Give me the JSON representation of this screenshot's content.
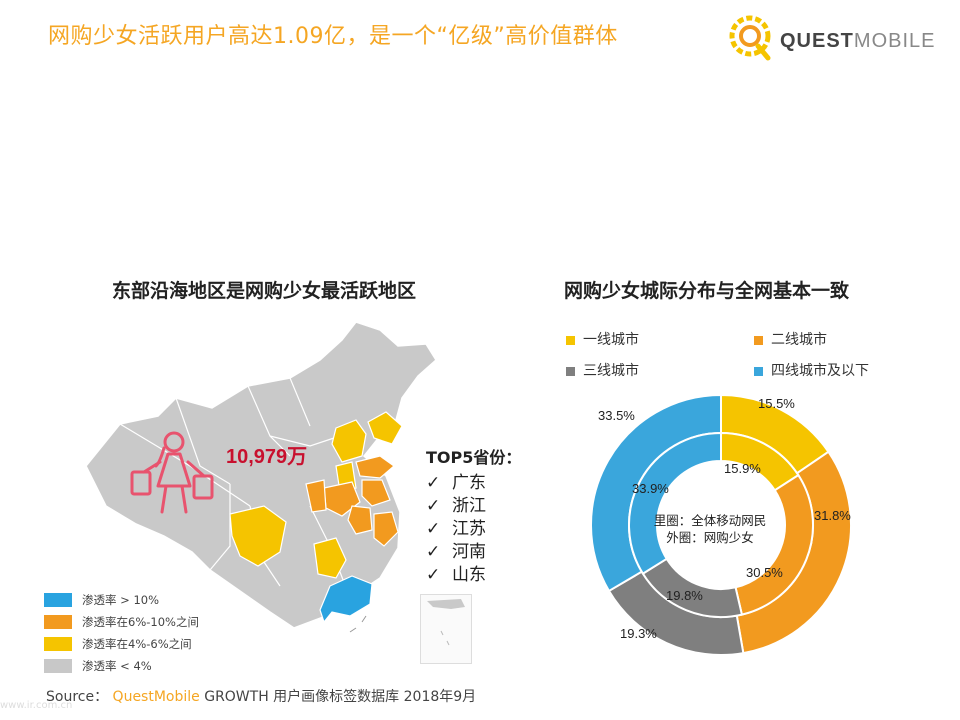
{
  "header": {
    "title": "网购少女活跃用户高达1.09亿，是一个“亿级”高价值群体",
    "logo_bold": "QUEST",
    "logo_light": "MOBILE"
  },
  "map_section": {
    "title": "东部沿海地区是网购少女最活跃地区",
    "total_users": "10,979万",
    "top5_title": "TOP5省份：",
    "top5": [
      "广东",
      "浙江",
      "江苏",
      "河南",
      "山东"
    ],
    "legend": [
      {
        "label": "渗透率 > 10%",
        "color": "#29a3e0"
      },
      {
        "label": "渗透率在6%-10%之间",
        "color": "#f29a1f"
      },
      {
        "label": "渗透率在4%-6%之间",
        "color": "#f5c400"
      },
      {
        "label": "渗透率 < 4%",
        "color": "#c8c8c8"
      }
    ],
    "check_icon": "✓"
  },
  "donut_section": {
    "title": "网购少女城际分布与全网基本一致",
    "center_inner": "里圈：全体移动网民",
    "center_outer": "外圈：网购少女"
  },
  "chart_data": {
    "type": "pie",
    "subtype": "nested-donut",
    "categories": [
      "一线城市",
      "二线城市",
      "三线城市",
      "四线城市及以下"
    ],
    "colors": [
      "#f5c400",
      "#f29a1f",
      "#7f7f7f",
      "#3aa6dc"
    ],
    "series": [
      {
        "name": "外圈：网购少女",
        "values": [
          15.5,
          31.8,
          19.3,
          33.5
        ]
      },
      {
        "name": "里圈：全体移动网民",
        "values": [
          15.9,
          30.5,
          19.8,
          33.9
        ]
      }
    ],
    "labels": {
      "outer": [
        "15.5%",
        "31.8%",
        "19.3%",
        "33.5%"
      ],
      "inner": [
        "15.9%",
        "30.5%",
        "19.8%",
        "33.9%"
      ]
    }
  },
  "footer": {
    "source_label": "Source：",
    "source_brand": "QuestMobile",
    "source_rest": " GROWTH 用户画像标签数据库 2018年9月",
    "url": "www.ir.com.cn"
  }
}
